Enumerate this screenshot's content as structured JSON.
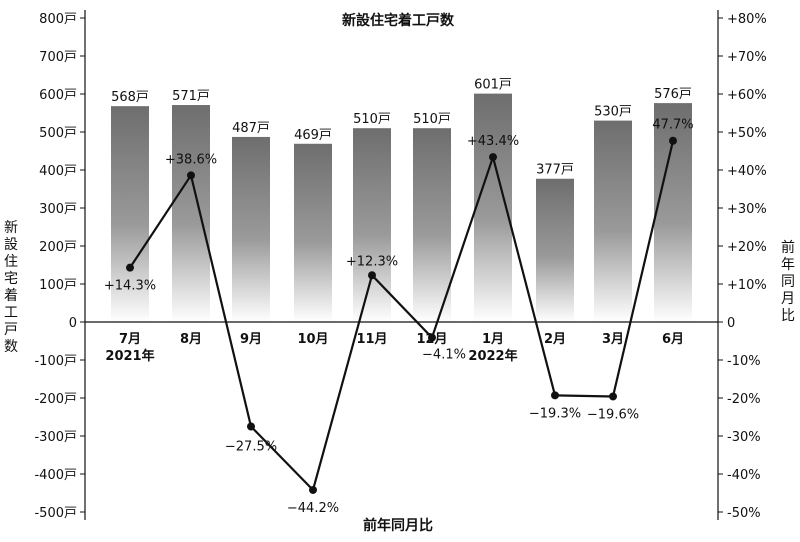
{
  "chart_data": {
    "type": "bar+line",
    "title": "新設住宅着工戸数",
    "left_axis": {
      "label": "新設住宅着工戸数",
      "ticks": [
        "800戸",
        "700戸",
        "600戸",
        "500戸",
        "400戸",
        "300戸",
        "200戸",
        "100戸",
        "0",
        "-100戸",
        "-200戸",
        "-300戸",
        "-400戸",
        "-500戸"
      ],
      "range": [
        -500,
        800
      ]
    },
    "right_axis": {
      "label": "前年同月比",
      "ticks": [
        "+80%",
        "+70%",
        "+60%",
        "+50%",
        "+40%",
        "+30%",
        "+20%",
        "+10%",
        "0",
        "-10%",
        "-20%",
        "-30%",
        "-40%",
        "-50%"
      ],
      "range": [
        -50,
        80
      ]
    },
    "xlabel": "前年同月比",
    "categories": [
      "7月",
      "8月",
      "9月",
      "10月",
      "11月",
      "12月",
      "1月",
      "2月",
      "3月",
      "6月"
    ],
    "year_labels": [
      {
        "index": 0,
        "text": "2021年"
      },
      {
        "index": 6,
        "text": "2022年"
      }
    ],
    "bars": {
      "values": [
        568,
        571,
        487,
        469,
        510,
        510,
        601,
        377,
        530,
        576
      ],
      "labels": [
        "568戸",
        "571戸",
        "487戸",
        "469戸",
        "510戸",
        "510戸",
        "601戸",
        "377戸",
        "530戸",
        "576戸"
      ]
    },
    "line": {
      "values": [
        14.3,
        38.6,
        -27.5,
        -44.2,
        12.3,
        -4.1,
        43.4,
        -19.3,
        -19.6,
        47.7
      ],
      "labels": [
        "+14.3%",
        "+38.6%",
        "−27.5%",
        "−44.2%",
        "+12.3%",
        "−4.1%",
        "+43.4%",
        "−19.3%",
        "−19.6%",
        "47.7%"
      ]
    },
    "colors": {
      "bar_top": "#6e6e6e",
      "bar_bottom": "#ffffff",
      "line": "#111111",
      "axis": "#111111"
    }
  }
}
